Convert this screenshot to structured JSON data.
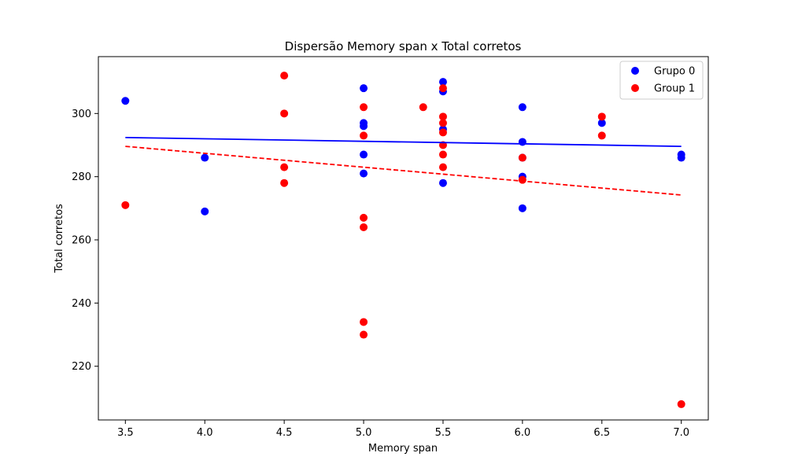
{
  "chart_data": {
    "type": "scatter",
    "title": "Dispersão Memory span x Total corretos",
    "xlabel": "Memory span",
    "ylabel": "Total corretos",
    "xlim": [
      3.33,
      7.17
    ],
    "ylim": [
      203,
      318
    ],
    "xticks": [
      3.5,
      4.0,
      4.5,
      5.0,
      5.5,
      6.0,
      6.5,
      7.0
    ],
    "xtick_labels": [
      "3.5",
      "4.0",
      "4.5",
      "5.0",
      "5.5",
      "6.0",
      "6.5",
      "7.0"
    ],
    "yticks": [
      220,
      240,
      260,
      280,
      300
    ],
    "ytick_labels": [
      "220",
      "240",
      "260",
      "280",
      "300"
    ],
    "grid": false,
    "legend_position": "top-right",
    "series": [
      {
        "name": "Grupo 0",
        "color": "#0000ff",
        "points": [
          [
            3.5,
            304
          ],
          [
            4.0,
            286
          ],
          [
            4.0,
            269
          ],
          [
            5.0,
            308
          ],
          [
            5.0,
            297
          ],
          [
            5.0,
            296
          ],
          [
            5.0,
            287
          ],
          [
            5.0,
            281
          ],
          [
            5.5,
            310
          ],
          [
            5.5,
            307
          ],
          [
            5.5,
            295
          ],
          [
            5.5,
            278
          ],
          [
            6.0,
            302
          ],
          [
            6.0,
            291
          ],
          [
            6.0,
            286
          ],
          [
            6.0,
            280
          ],
          [
            6.0,
            270
          ],
          [
            6.5,
            297
          ],
          [
            7.0,
            287
          ],
          [
            7.0,
            286
          ]
        ],
        "trend": {
          "x": [
            3.5,
            7.0
          ],
          "y": [
            292.4,
            289.6
          ],
          "style": "solid"
        }
      },
      {
        "name": "Group 1",
        "color": "#ff0000",
        "points": [
          [
            3.5,
            271
          ],
          [
            4.5,
            312
          ],
          [
            4.5,
            300
          ],
          [
            4.5,
            283
          ],
          [
            4.5,
            278
          ],
          [
            5.0,
            302
          ],
          [
            5.0,
            293
          ],
          [
            5.0,
            267
          ],
          [
            5.0,
            264
          ],
          [
            5.0,
            234
          ],
          [
            5.0,
            230
          ],
          [
            5.375,
            302
          ],
          [
            5.5,
            308
          ],
          [
            5.5,
            299
          ],
          [
            5.5,
            297
          ],
          [
            5.5,
            294
          ],
          [
            5.5,
            290
          ],
          [
            5.5,
            287
          ],
          [
            5.5,
            283
          ],
          [
            6.0,
            286
          ],
          [
            6.0,
            279
          ],
          [
            6.5,
            299
          ],
          [
            6.5,
            293
          ],
          [
            7.0,
            208
          ]
        ],
        "trend": {
          "x": [
            3.5,
            7.0
          ],
          "y": [
            289.6,
            274.2
          ],
          "style": "dashed"
        }
      }
    ]
  }
}
